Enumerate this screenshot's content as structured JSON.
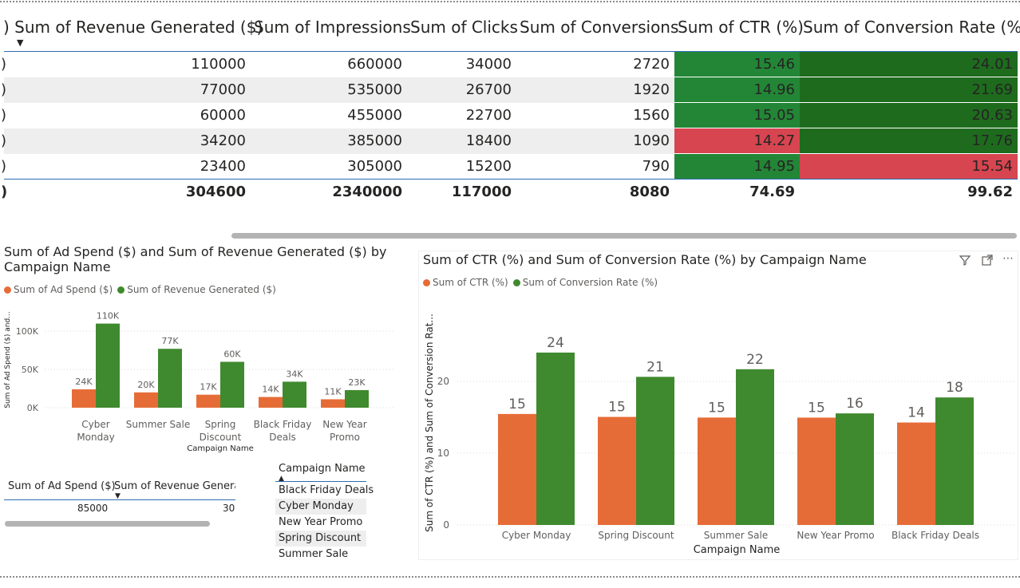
{
  "table": {
    "columns": [
      {
        "label": ") Sum of Revenue Generated ($)",
        "short": "Sum of Revenue Generated ($)"
      },
      {
        "label": "Sum of Impressions"
      },
      {
        "label": "Sum of Clicks"
      },
      {
        "label": "Sum of Conversions"
      },
      {
        "label": "Sum of CTR (%)"
      },
      {
        "label": "Sum of Conversion Rate (%)"
      }
    ],
    "rows": [
      {
        "cut": ")",
        "revenue": "110000",
        "impressions": "660000",
        "clicks": "34000",
        "conversions": "2720",
        "ctr": "15.46",
        "conv_rate": "24.01"
      },
      {
        "cut": ")",
        "revenue": "77000",
        "impressions": "535000",
        "clicks": "26700",
        "conversions": "1920",
        "ctr": "14.96",
        "conv_rate": "21.69"
      },
      {
        "cut": ")",
        "revenue": "60000",
        "impressions": "455000",
        "clicks": "22700",
        "conversions": "1560",
        "ctr": "15.05",
        "conv_rate": "20.63"
      },
      {
        "cut": ")",
        "revenue": "34200",
        "impressions": "385000",
        "clicks": "18400",
        "conversions": "1090",
        "ctr": "14.27",
        "conv_rate": "17.76"
      },
      {
        "cut": ")",
        "revenue": "23400",
        "impressions": "305000",
        "clicks": "15200",
        "conversions": "790",
        "ctr": "14.95",
        "conv_rate": "15.54"
      }
    ],
    "total": {
      "cut": ")",
      "revenue": "304600",
      "impressions": "2340000",
      "clicks": "117000",
      "conversions": "8080",
      "ctr": "74.69",
      "conv_rate": "99.62"
    },
    "colors": {
      "green_mid": "#238636",
      "green_dark": "#1e6b1e",
      "red": "#d64550"
    }
  },
  "left_chart": {
    "title_line1": "Sum of Ad Spend ($) and Sum of Revenue Generated ($) by",
    "title_line2": "Campaign Name",
    "legend": [
      "Sum of Ad Spend ($)",
      "Sum of Revenue Generated ($)"
    ],
    "y_axis_label": "Sum of Ad Spend ($) and...",
    "y_ticks": [
      "0K",
      "50K",
      "100K"
    ],
    "x_axis_label": "Campaign Name",
    "categories": [
      [
        "Cyber",
        "Monday"
      ],
      [
        "Summer Sale"
      ],
      [
        "Spring",
        "Discount"
      ],
      [
        "Black Friday",
        "Deals"
      ],
      [
        "New Year",
        "Promo"
      ]
    ],
    "ad_spend_labels": [
      "24K",
      "20K",
      "17K",
      "14K",
      "11K"
    ],
    "revenue_labels": [
      "110K",
      "77K",
      "60K",
      "34K",
      "23K"
    ]
  },
  "right_chart": {
    "title": "Sum of CTR (%) and Sum of Conversion Rate (%) by Campaign Name",
    "legend": [
      "Sum of CTR (%)",
      "Sum of Conversion Rate (%)"
    ],
    "y_axis_label": "Sum of CTR (%) and Sum of Conversion Rat...",
    "y_ticks": [
      "0",
      "10",
      "20"
    ],
    "x_axis_label": "Campaign Name",
    "categories": [
      "Cyber Monday",
      "Spring Discount",
      "Summer Sale",
      "New Year Promo",
      "Black Friday Deals"
    ],
    "ctr_labels": [
      "15",
      "15",
      "15",
      "15",
      "14"
    ],
    "conv_labels": [
      "24",
      "21",
      "22",
      "16",
      "18"
    ]
  },
  "chart_data": [
    {
      "type": "bar",
      "title": "Sum of Ad Spend ($) and Sum of Revenue Generated ($) by Campaign Name",
      "xlabel": "Campaign Name",
      "ylabel": "Sum of Ad Spend ($) and...",
      "categories": [
        "Cyber Monday",
        "Summer Sale",
        "Spring Discount",
        "Black Friday Deals",
        "New Year Promo"
      ],
      "series": [
        {
          "name": "Sum of Ad Spend ($)",
          "values": [
            24000,
            20000,
            17000,
            14000,
            11000
          ],
          "color": "#e66c37"
        },
        {
          "name": "Sum of Revenue Generated ($)",
          "values": [
            110000,
            77000,
            60000,
            34000,
            23000
          ],
          "color": "#3f8a2e"
        }
      ],
      "ylim": [
        0,
        120000
      ],
      "grid": true,
      "legend": "top-left"
    },
    {
      "type": "bar",
      "title": "Sum of CTR (%) and Sum of Conversion Rate (%) by Campaign Name",
      "xlabel": "Campaign Name",
      "ylabel": "Sum of CTR (%) and Sum of Conversion Rat...",
      "categories": [
        "Cyber Monday",
        "Spring Discount",
        "Summer Sale",
        "New Year Promo",
        "Black Friday Deals"
      ],
      "series": [
        {
          "name": "Sum of CTR (%)",
          "values": [
            15.46,
            15.05,
            14.96,
            14.95,
            14.27
          ],
          "color": "#e66c37"
        },
        {
          "name": "Sum of Conversion Rate (%)",
          "values": [
            24.01,
            20.63,
            21.69,
            15.54,
            17.76
          ],
          "color": "#3f8a2e"
        }
      ],
      "ylim": [
        0,
        26
      ],
      "grid": true,
      "legend": "top-left"
    }
  ],
  "mini_table": {
    "col1": "Sum of Ad Spend ($)",
    "col2": "Sum of Revenue Generate",
    "val1": "85000",
    "val2": "30"
  },
  "slicer": {
    "header": "Campaign Name",
    "items": [
      "Black Friday Deals",
      "Cyber Monday",
      "New Year Promo",
      "Spring Discount",
      "Summer Sale"
    ]
  },
  "icons": [
    "filter-icon",
    "focus-mode-icon",
    "more-options-icon"
  ]
}
